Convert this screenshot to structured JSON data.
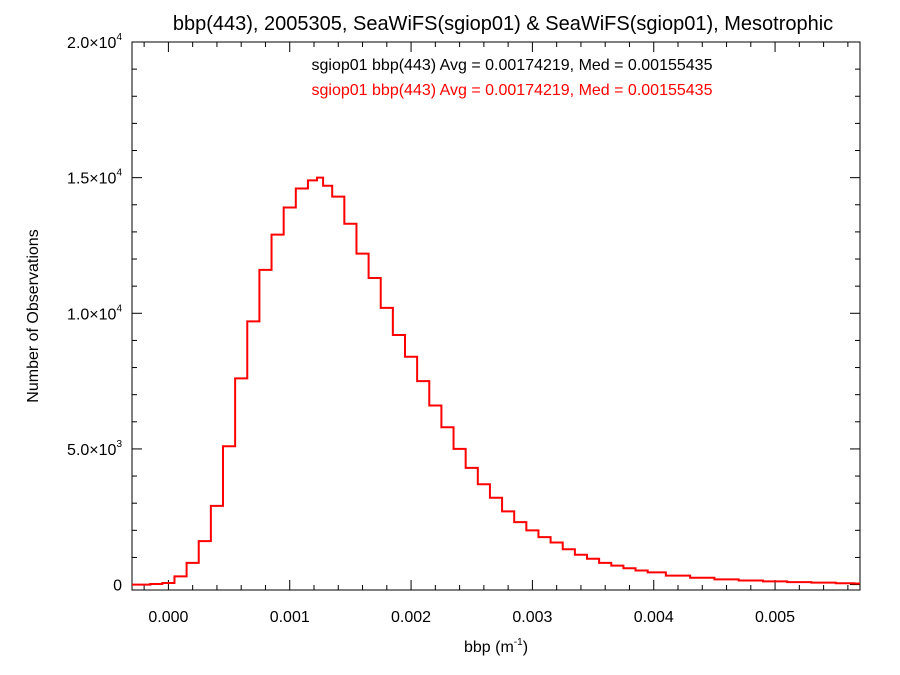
{
  "chart_data": {
    "type": "line",
    "title": "bbp(443), 2005305, SeaWiFS(sgiop01) & SeaWiFS(sgiop01), Mesotrophic",
    "xlabel": "bbp (m",
    "xlabel_exp": "-1",
    "xlabel_close": ")",
    "ylabel": "Number of Observations",
    "xlim": [
      -0.0003,
      0.0057
    ],
    "ylim": [
      -200,
      20000
    ],
    "x_ticks": [
      {
        "value": 0.0,
        "label": "0.000"
      },
      {
        "value": 0.001,
        "label": "0.001"
      },
      {
        "value": 0.002,
        "label": "0.002"
      },
      {
        "value": 0.003,
        "label": "0.003"
      },
      {
        "value": 0.004,
        "label": "0.004"
      },
      {
        "value": 0.005,
        "label": "0.005"
      }
    ],
    "y_ticks": [
      {
        "value": 0,
        "mant": "0",
        "exp": ""
      },
      {
        "value": 5000,
        "mant": "5.0×10",
        "exp": "3"
      },
      {
        "value": 10000,
        "mant": "1.0×10",
        "exp": "4"
      },
      {
        "value": 15000,
        "mant": "1.5×10",
        "exp": "4"
      },
      {
        "value": 20000,
        "mant": "2.0×10",
        "exp": "4"
      }
    ],
    "grid": false,
    "legend_entries": [
      {
        "text": "sgiop01 bbp(443) Avg = 0.00174219, Med = 0.00155435",
        "color": "#000000"
      },
      {
        "text": "sgiop01 bbp(443) Avg = 0.00174219, Med = 0.00155435",
        "color": "#ff0000"
      }
    ],
    "series": [
      {
        "color": "#ff0000",
        "x": [
          -0.0003,
          -0.0002,
          -0.0001,
          0.0,
          0.0001,
          0.0002,
          0.0003,
          0.0004,
          0.0005,
          0.0006,
          0.0007,
          0.0008,
          0.0009,
          0.001,
          0.0011,
          0.0012,
          0.00125,
          0.0013,
          0.0014,
          0.0015,
          0.0016,
          0.0017,
          0.0018,
          0.0019,
          0.002,
          0.0021,
          0.0022,
          0.0023,
          0.0024,
          0.0025,
          0.0026,
          0.0027,
          0.0028,
          0.0029,
          0.003,
          0.0031,
          0.0032,
          0.0033,
          0.0034,
          0.0035,
          0.0036,
          0.0037,
          0.0038,
          0.0039,
          0.004,
          0.0042,
          0.0044,
          0.0046,
          0.0048,
          0.005,
          0.0052,
          0.0054,
          0.0056,
          0.0057
        ],
        "y": [
          0,
          0,
          20,
          60,
          300,
          800,
          1600,
          2900,
          5100,
          7600,
          9700,
          11600,
          12900,
          13900,
          14600,
          14900,
          15000,
          14700,
          14300,
          13300,
          12200,
          11300,
          10200,
          9200,
          8400,
          7500,
          6600,
          5800,
          5000,
          4300,
          3700,
          3200,
          2700,
          2300,
          2000,
          1750,
          1550,
          1300,
          1100,
          950,
          800,
          700,
          600,
          520,
          450,
          330,
          250,
          190,
          150,
          120,
          90,
          70,
          50,
          40
        ]
      }
    ]
  }
}
